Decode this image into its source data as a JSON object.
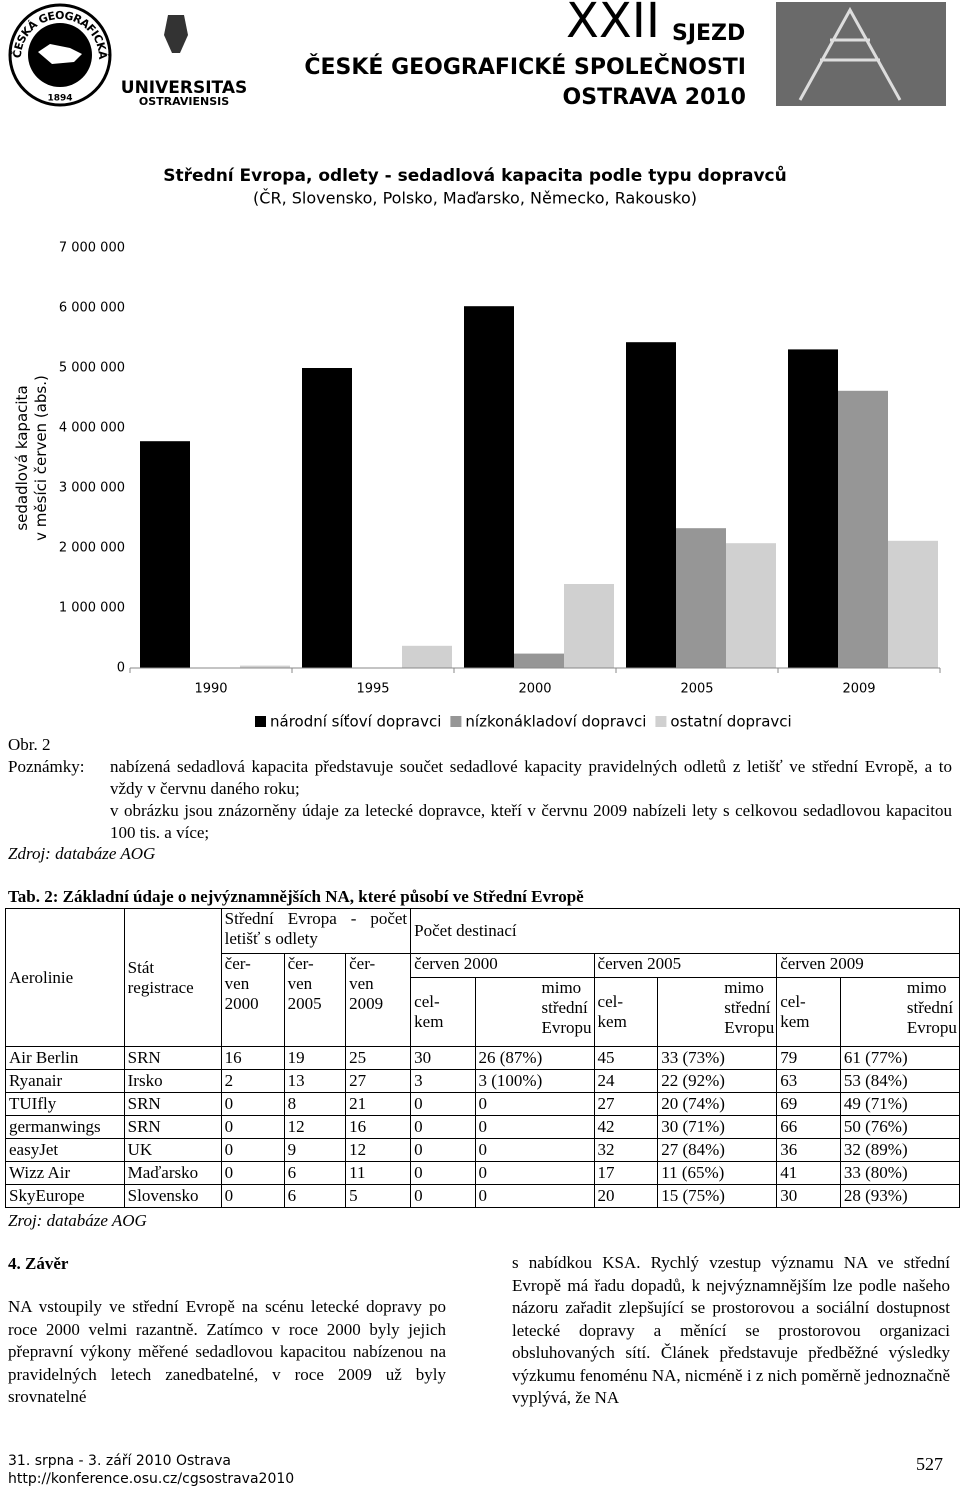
{
  "header": {
    "society_logo": "ČESKÁ GEOGRAFICKÁ SPOLEČNOST",
    "society_year": "1894",
    "university_1": "UNIVERSITAS",
    "university_2": "OSTRAVIENSIS",
    "congress_number": "XXII",
    "congress_word": "SJEZD",
    "congress_society": "ČESKÉ GEOGRAFICKÉ SPOLEČNOSTI",
    "congress_place": "OSTRAVA 2010"
  },
  "chart_data": {
    "type": "bar",
    "title": "Střední Evropa, odlety - sedadlová kapacita podle typu dopravců",
    "subtitle": "(ČR, Slovensko, Polsko, Maďarsko, Německo, Rakousko)",
    "ylabel": [
      "sedadlová kapacita",
      "v měsíci červen (abs.)"
    ],
    "categories": [
      "1990",
      "1995",
      "2000",
      "2005",
      "2009"
    ],
    "series": [
      {
        "name": "národní síťoví dopravci",
        "color": "#000000",
        "values": [
          3780000,
          5000000,
          6030000,
          5430000,
          5310000
        ]
      },
      {
        "name": "nízkonákladoví dopravci",
        "color": "#969696",
        "values": [
          0,
          0,
          240000,
          2330000,
          4620000
        ]
      },
      {
        "name": "ostatní dopravci",
        "color": "#d0d0d0",
        "values": [
          40000,
          370000,
          1400000,
          2080000,
          2120000
        ]
      }
    ],
    "ylim": [
      0,
      7000000
    ],
    "yticks": [
      0,
      {
        "value": 1000000,
        "label": "1 000 000"
      },
      {
        "value": 2000000,
        "label": "2 000 000"
      },
      {
        "value": 3000000,
        "label": "3 000 000"
      },
      {
        "value": 4000000,
        "label": "4 000 000"
      },
      {
        "value": 5000000,
        "label": "5 000 000"
      },
      {
        "value": 6000000,
        "label": "6 000 000"
      },
      {
        "value": 7000000,
        "label": "7 000 000"
      }
    ],
    "grid": false,
    "legend": "bottom"
  },
  "figure": {
    "label": "Obr. 2",
    "notes_label": "Poznámky:",
    "notes": [
      "nabízená sedadlová kapacita představuje součet sedadlové kapacity pravidelných odletů z letišť ve střední Evropě, a to vždy v červnu daného roku;",
      "v obrázku jsou znázorněny údaje za letecké dopravce, kteří v červnu 2009 nabízeli lety s celkovou sedadlovou kapacitou 100 tis. a více;"
    ],
    "source": "Zdroj: databáze AOG"
  },
  "table": {
    "title": "Tab. 2: Základní údaje o nejvýznamnějších NA, které působí ve Střední Evropě",
    "header": {
      "airline": "Aerolinie",
      "country": "Stát registrace",
      "airports": "Střední Evropa - počet letišť s odlety",
      "airport_months": [
        "čer- ven 2000",
        "čer- ven 2005",
        "čer- ven 2009"
      ],
      "destinations": "Počet destinací",
      "periods": [
        "červen 2000",
        "červen 2005",
        "červen 2009"
      ],
      "total": "cel- kem",
      "outside": "mimo střední Evropu"
    },
    "rows": [
      [
        "Air Berlin",
        "SRN",
        16,
        19,
        25,
        30,
        "26 (87%)",
        45,
        "33 (73%)",
        79,
        "61 (77%)"
      ],
      [
        "Ryanair",
        "Irsko",
        2,
        13,
        27,
        3,
        "3 (100%)",
        24,
        "22 (92%)",
        63,
        "53 (84%)"
      ],
      [
        "TUIfly",
        "SRN",
        0,
        8,
        21,
        0,
        0,
        27,
        "20 (74%)",
        69,
        "49 (71%)"
      ],
      [
        "germanwings",
        "SRN",
        0,
        12,
        16,
        0,
        0,
        42,
        "30 (71%)",
        66,
        "50 (76%)"
      ],
      [
        "easyJet",
        "UK",
        0,
        9,
        12,
        0,
        0,
        32,
        "27 (84%)",
        36,
        "32 (89%)"
      ],
      [
        "Wizz Air",
        "Maďarsko",
        0,
        6,
        11,
        0,
        0,
        17,
        "11 (65%)",
        41,
        "33 (80%)"
      ],
      [
        "SkyEurope",
        "Slovensko",
        0,
        6,
        5,
        0,
        0,
        20,
        "15 (75%)",
        30,
        "28 (93%)"
      ]
    ],
    "source": "Zroj: databáze AOG"
  },
  "section": {
    "heading": "4. Závěr",
    "left": "NA vstoupily ve střední Evropě na scénu letecké dopravy po roce 2000 velmi razantně. Zatímco v roce 2000 byly jejich přepravní výkony měřené sedadlovou kapacitou nabízenou na pravidelných letech zanedbatelné, v roce 2009 už byly srovnatelné",
    "right": "s nabídkou KSA. Rychlý vzestup významu NA ve střední Evropě má řadu dopadů, k nejvýznamnějším lze podle našeho názoru zařadit zlepšující se prostorovou a sociální dostupnost letecké dopravy a měnící se prostorovou organizaci obsluhovaných sítí. Článek představuje předběžné výsledky výzkumu fenoménu NA, nicméně i z nich poměrně jednoznačně vyplývá, že NA"
  },
  "footer": {
    "dates": "31. srpna - 3. září 2010 Ostrava",
    "url": "http://konference.osu.cz/cgsostrava2010",
    "page": "527"
  }
}
